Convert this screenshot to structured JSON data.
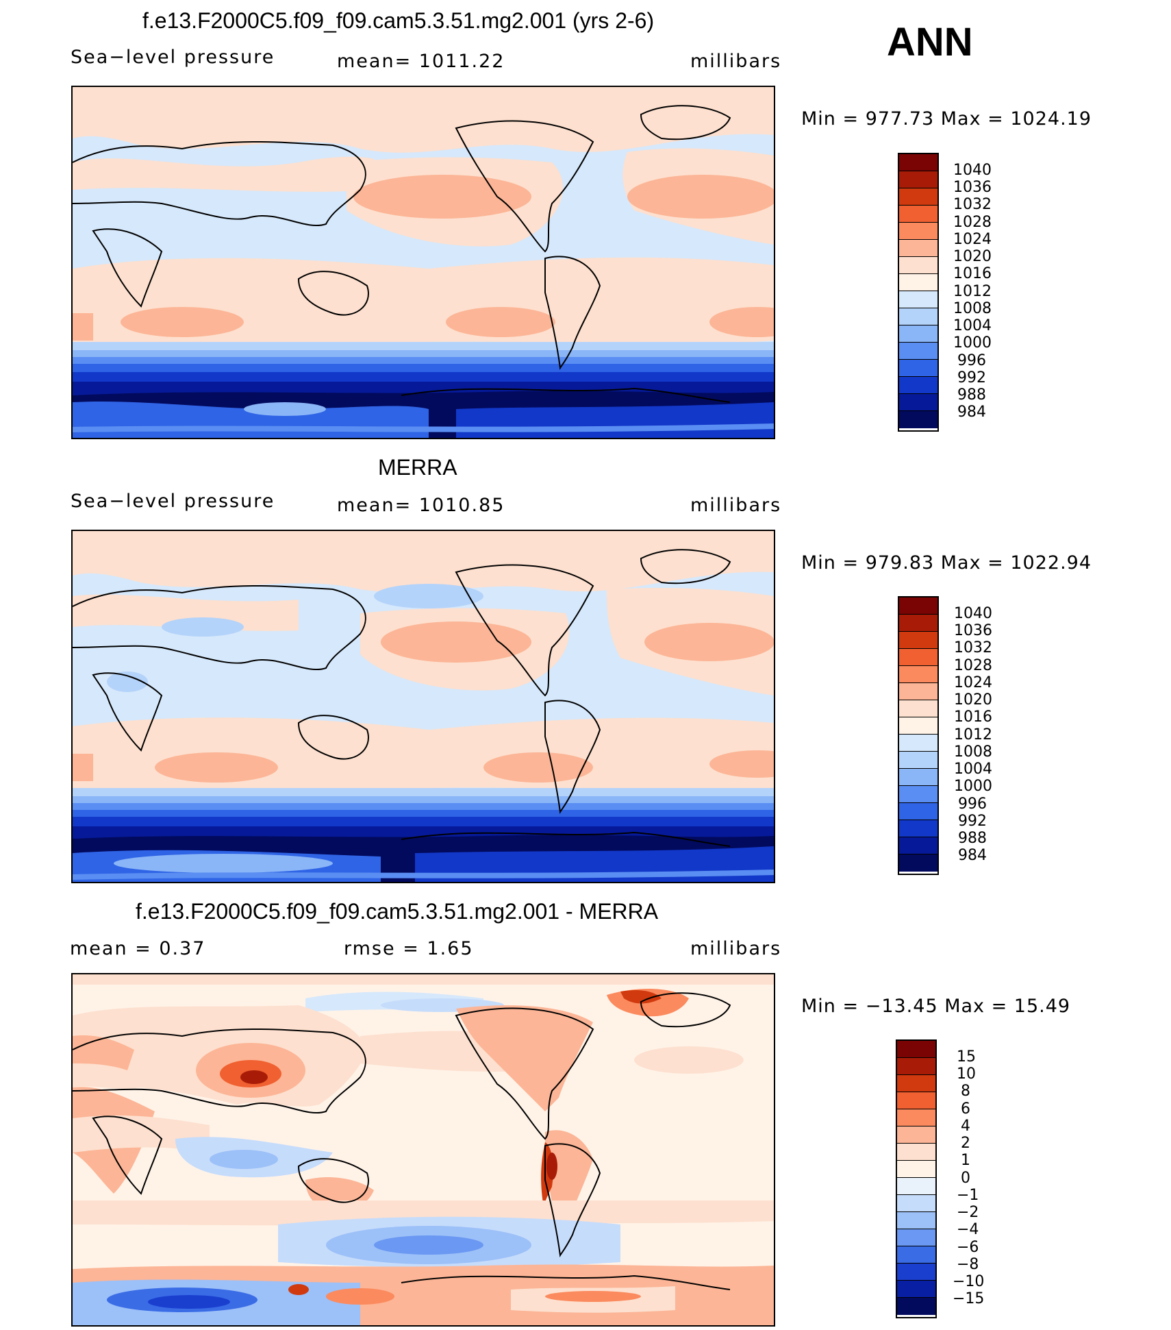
{
  "season": "ANN",
  "panels": [
    {
      "title": "f.e13.F2000C5.f09_f09.cam5.3.51.mg2.001 (yrs 2-6)",
      "left_label": "Sea−level pressure",
      "mid_label": "mean=  1011.22",
      "right_label": "millibars",
      "minmax": "Min  =  977.73  Max  =  1024.19",
      "levels": [
        "1040",
        "1036",
        "1032",
        "1028",
        "1024",
        "1020",
        "1016",
        "1012",
        "1008",
        "1004",
        "1000",
        "996",
        "992",
        "988",
        "984"
      ],
      "colors": [
        "#7a0403",
        "#a81c07",
        "#d03a0e",
        "#f06030",
        "#fb8a5e",
        "#fcb596",
        "#fde0cf",
        "#fff3e8",
        "#d6e8fb",
        "#b4d3fa",
        "#8ab5f7",
        "#5a8ef2",
        "#2f64e6",
        "#1238c9",
        "#061a99",
        "#020a5e"
      ]
    },
    {
      "title": "MERRA",
      "left_label": "Sea−level pressure",
      "mid_label": "mean=  1010.85",
      "right_label": "millibars",
      "minmax": "Min  =  979.83  Max  =  1022.94",
      "levels": [
        "1040",
        "1036",
        "1032",
        "1028",
        "1024",
        "1020",
        "1016",
        "1012",
        "1008",
        "1004",
        "1000",
        "996",
        "992",
        "988",
        "984"
      ],
      "colors": [
        "#7a0403",
        "#a81c07",
        "#d03a0e",
        "#f06030",
        "#fb8a5e",
        "#fcb596",
        "#fde0cf",
        "#fff3e8",
        "#d6e8fb",
        "#b4d3fa",
        "#8ab5f7",
        "#5a8ef2",
        "#2f64e6",
        "#1238c9",
        "#061a99",
        "#020a5e"
      ]
    },
    {
      "title": "f.e13.F2000C5.f09_f09.cam5.3.51.mg2.001 - MERRA",
      "left_label": "mean  =      0.37",
      "mid_label": "rmse  =      1.65",
      "right_label": "millibars",
      "minmax": "Min  =  −13.45  Max  =     15.49",
      "levels": [
        "15",
        "10",
        "8",
        "6",
        "4",
        "2",
        "1",
        "0",
        "−1",
        "−2",
        "−4",
        "−6",
        "−8",
        "−10",
        "−15"
      ],
      "colors": [
        "#7a0403",
        "#a81c07",
        "#d03a0e",
        "#f06030",
        "#fb8a5e",
        "#fcb596",
        "#fde0cf",
        "#fff3e8",
        "#e9f1fb",
        "#c6dcfb",
        "#9cc0f8",
        "#6a98f2",
        "#3a6ce6",
        "#1a3fcf",
        "#081fa3",
        "#020a5e"
      ]
    }
  ]
}
